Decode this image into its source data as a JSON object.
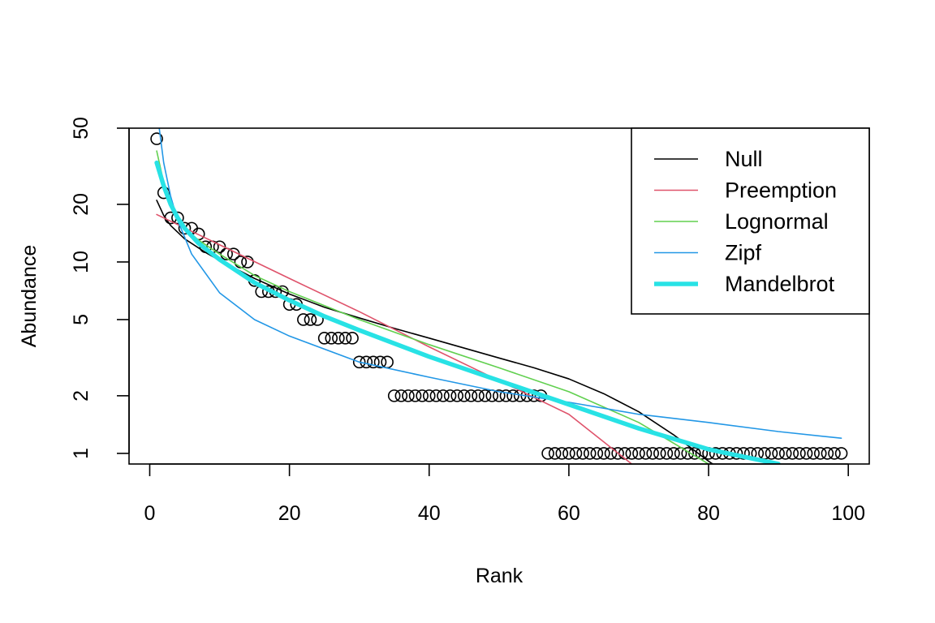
{
  "chart_data": {
    "type": "line",
    "title": "",
    "xlabel": "Rank",
    "ylabel": "Abundance",
    "xlim": [
      -2.96,
      103
    ],
    "ylim": [
      0.88,
      50
    ],
    "y_scale": "log",
    "grid": false,
    "legend_position": "top-right",
    "x_ticks": [
      0,
      20,
      40,
      60,
      80,
      100
    ],
    "y_ticks": [
      1,
      2,
      5,
      10,
      20,
      50
    ],
    "observed": {
      "name": "",
      "marker": "open-circle",
      "color": "#000000",
      "rank": [
        1,
        2,
        3,
        4,
        5,
        6,
        7,
        8,
        9,
        10,
        11,
        12,
        13,
        14,
        15,
        16,
        17,
        18,
        19,
        20,
        21,
        22,
        23,
        24,
        25,
        26,
        27,
        28,
        29,
        30,
        31,
        32,
        33,
        34,
        35,
        36,
        37,
        38,
        39,
        40,
        41,
        42,
        43,
        44,
        45,
        46,
        47,
        48,
        49,
        50,
        51,
        52,
        53,
        54,
        55,
        56,
        57,
        58,
        59,
        60,
        61,
        62,
        63,
        64,
        65,
        66,
        67,
        68,
        69,
        70,
        71,
        72,
        73,
        74,
        75,
        76,
        77,
        78,
        79,
        80,
        81,
        82,
        83,
        84,
        85,
        86,
        87,
        88,
        89,
        90,
        91,
        92,
        93,
        94,
        95,
        96,
        97,
        98,
        99
      ],
      "abundance": [
        44,
        23,
        17,
        17,
        15,
        15,
        14,
        12,
        12,
        12,
        11,
        11,
        10,
        10,
        8,
        7,
        7,
        7,
        7,
        6,
        6,
        5,
        5,
        5,
        4,
        4,
        4,
        4,
        4,
        3,
        3,
        3,
        3,
        3,
        2,
        2,
        2,
        2,
        2,
        2,
        2,
        2,
        2,
        2,
        2,
        2,
        2,
        2,
        2,
        2,
        2,
        2,
        2,
        2,
        2,
        2,
        1,
        1,
        1,
        1,
        1,
        1,
        1,
        1,
        1,
        1,
        1,
        1,
        1,
        1,
        1,
        1,
        1,
        1,
        1,
        1,
        1,
        1,
        1,
        1,
        1,
        1,
        1,
        1,
        1,
        1,
        1,
        1,
        1,
        1,
        1,
        1,
        1,
        1,
        1,
        1,
        1,
        1,
        1
      ]
    },
    "series": [
      {
        "name": "Null",
        "color": "#000000",
        "x": [
          1,
          2,
          3,
          5,
          8,
          10,
          15,
          20,
          25,
          30,
          35,
          40,
          45,
          50,
          55,
          60,
          65,
          70,
          75,
          80,
          81
        ],
        "y": [
          21,
          17.5,
          15.5,
          13.2,
          11.2,
          10.2,
          8.2,
          6.8,
          5.8,
          5.1,
          4.5,
          4.0,
          3.55,
          3.15,
          2.8,
          2.45,
          2.05,
          1.65,
          1.25,
          0.91,
          0.86
        ]
      },
      {
        "name": "Preemption",
        "color": "#DF536B",
        "x": [
          1,
          10,
          20,
          30,
          40,
          50,
          60,
          69
        ],
        "y": [
          17.7,
          12.3,
          8.2,
          5.5,
          3.6,
          2.4,
          1.6,
          0.88
        ]
      },
      {
        "name": "Lognormal",
        "color": "#61D04F",
        "x": [
          1,
          2,
          3,
          4,
          5,
          7,
          10,
          15,
          20,
          30,
          40,
          50,
          60,
          70,
          80
        ],
        "y": [
          38,
          26,
          20,
          17,
          15,
          13,
          11,
          8.5,
          7,
          5,
          3.7,
          2.8,
          2.1,
          1.45,
          0.88
        ]
      },
      {
        "name": "Zipf",
        "color": "#2297E6",
        "x": [
          1.3,
          2,
          3,
          4,
          6,
          10,
          15,
          20,
          30,
          40,
          50,
          60,
          70,
          80,
          90,
          99
        ],
        "y": [
          52,
          33,
          22,
          16.5,
          11,
          6.9,
          5,
          4.1,
          3.0,
          2.5,
          2.1,
          1.85,
          1.6,
          1.45,
          1.3,
          1.2
        ]
      },
      {
        "name": "Mandelbrot",
        "color": "#28E2E5",
        "x": [
          1,
          2,
          3,
          4,
          5,
          7,
          10,
          15,
          20,
          25,
          30,
          40,
          50,
          60,
          70,
          80,
          90
        ],
        "y": [
          33,
          25,
          20,
          17,
          15,
          12.5,
          10.3,
          7.8,
          6.3,
          5.2,
          4.4,
          3.2,
          2.4,
          1.8,
          1.35,
          1.05,
          0.88
        ]
      }
    ]
  }
}
